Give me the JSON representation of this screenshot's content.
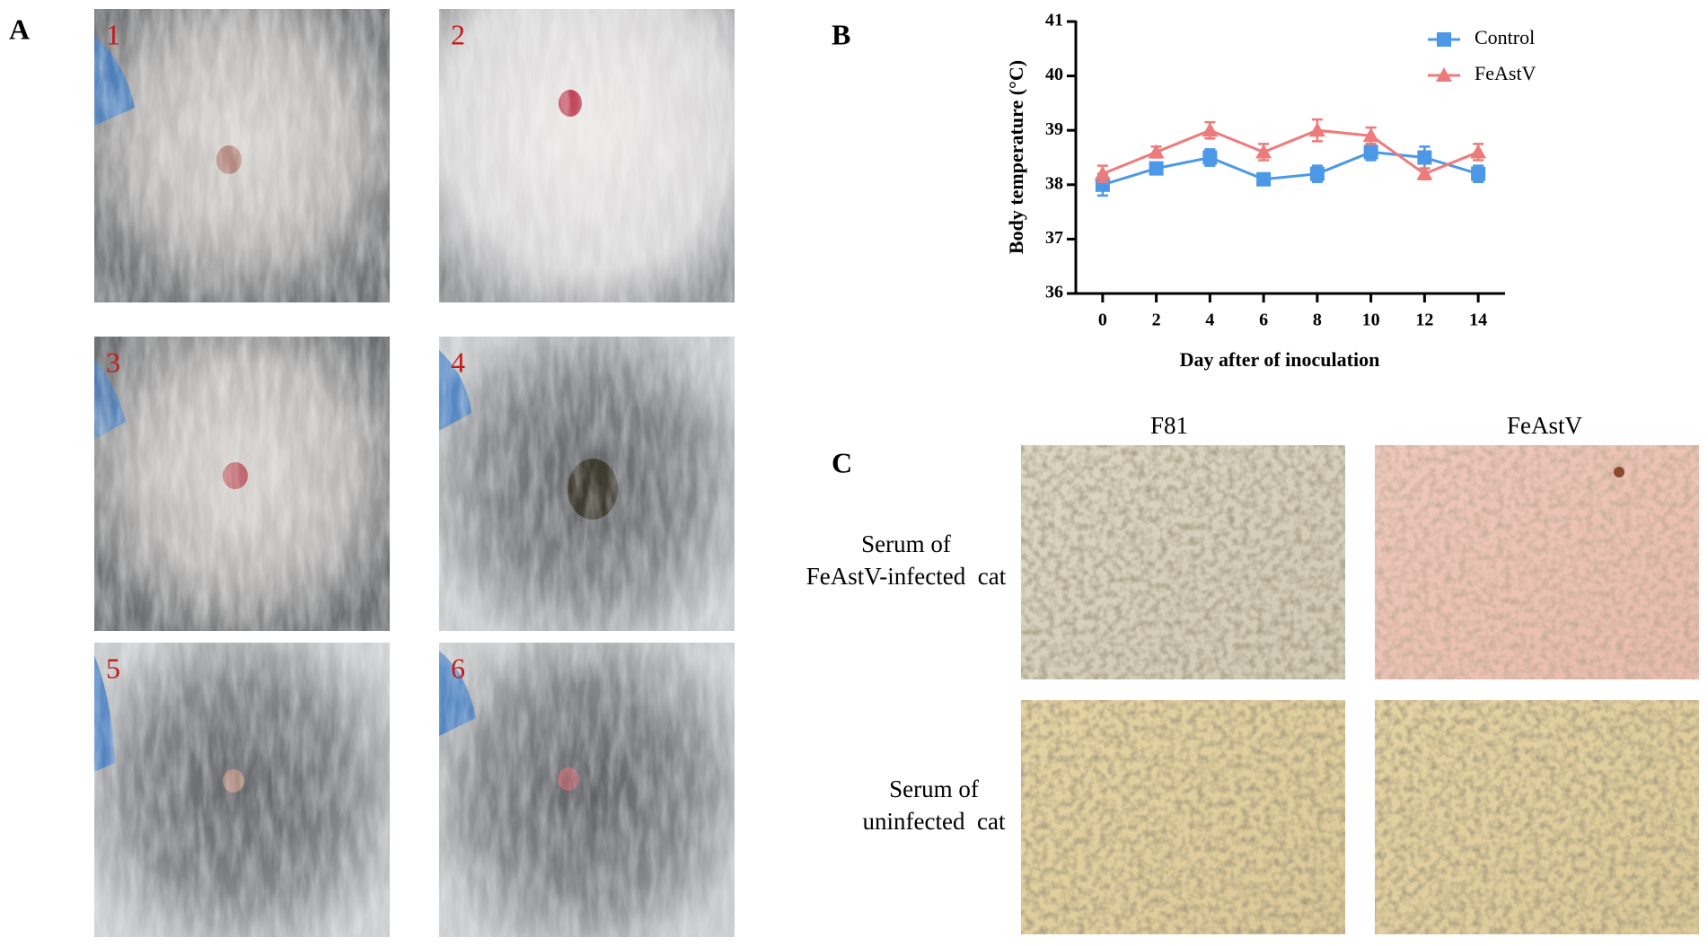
{
  "panels": {
    "a": {
      "label": "A",
      "photo_labels": [
        "1",
        "2",
        "3",
        "4",
        "5",
        "6"
      ]
    },
    "b": {
      "label": "B"
    },
    "c": {
      "label": "C",
      "columns": [
        "F81",
        "FeAstV"
      ],
      "rows": [
        [
          "Serum of",
          "FeAstV-infected  cat"
        ],
        [
          "Serum of",
          "uninfected  cat"
        ]
      ]
    }
  },
  "chart_data": {
    "type": "line",
    "xlabel": "Day after of inoculation",
    "ylabel": "Body temperature (°C)",
    "x": [
      0,
      2,
      4,
      6,
      8,
      10,
      12,
      14
    ],
    "series": [
      {
        "name": "Control",
        "color": "#4a98e6",
        "marker": "square",
        "values": [
          38.0,
          38.3,
          38.5,
          38.1,
          38.2,
          38.6,
          38.5,
          38.2
        ],
        "errors": [
          0.2,
          0.1,
          0.15,
          0.1,
          0.15,
          0.15,
          0.2,
          0.15
        ]
      },
      {
        "name": "FeAstV",
        "color": "#ee7b7b",
        "marker": "triangle",
        "values": [
          38.2,
          38.6,
          39.0,
          38.6,
          39.0,
          38.9,
          38.2,
          38.6
        ],
        "errors": [
          0.15,
          0.1,
          0.15,
          0.15,
          0.2,
          0.15,
          0.1,
          0.15
        ]
      }
    ],
    "xlim": [
      -1,
      15
    ],
    "ylim": [
      36,
      41
    ],
    "xticks": [
      0,
      2,
      4,
      6,
      8,
      10,
      12,
      14
    ],
    "yticks": [
      36,
      37,
      38,
      39,
      40,
      41
    ],
    "legend": "upper right",
    "grid": false
  }
}
